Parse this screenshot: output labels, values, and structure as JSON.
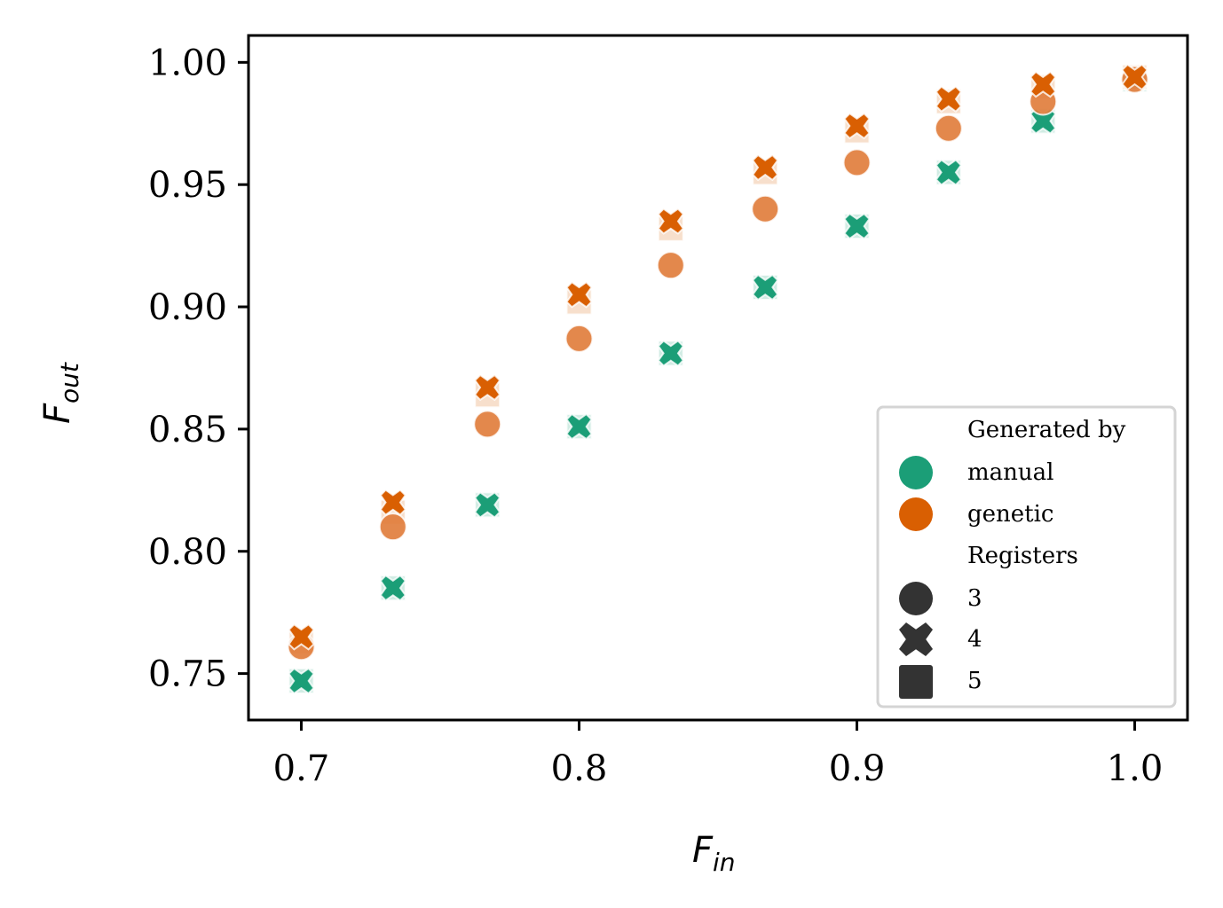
{
  "chart_data": {
    "type": "scatter",
    "title": "",
    "xlabel": {
      "main": "F",
      "sub": "in"
    },
    "ylabel": {
      "main": "F",
      "sub": "out"
    },
    "xlim": [
      0.681,
      1.019
    ],
    "ylim": [
      0.731,
      1.011
    ],
    "xticks": [
      0.7,
      0.8,
      0.9,
      1.0
    ],
    "xtick_labels": [
      "0.7",
      "0.8",
      "0.9",
      "1.0"
    ],
    "yticks": [
      0.75,
      0.8,
      0.85,
      0.9,
      0.95,
      1.0
    ],
    "ytick_labels": [
      "0.75",
      "0.80",
      "0.85",
      "0.90",
      "0.95",
      "1.00"
    ],
    "grid": false,
    "legend": {
      "placement": "lower-right",
      "hue_title": "Generated by",
      "hue_entries": [
        {
          "label": "manual",
          "color": "#1b9e77"
        },
        {
          "label": "genetic",
          "color": "#d95f02"
        }
      ],
      "style_title": "Registers",
      "style_entries": [
        {
          "label": "3",
          "marker": "circle"
        },
        {
          "label": "4",
          "marker": "x"
        },
        {
          "label": "5",
          "marker": "square"
        }
      ]
    },
    "x": [
      0.7,
      0.733,
      0.767,
      0.8,
      0.833,
      0.867,
      0.9,
      0.933,
      0.967,
      1.0
    ],
    "series": [
      {
        "name": "manual",
        "registers": "5",
        "marker": "square",
        "color": "#1b9e77",
        "values": [
          0.747,
          0.785,
          0.819,
          0.851,
          0.881,
          0.908,
          0.933,
          0.955,
          0.976,
          0.993
        ]
      },
      {
        "name": "manual",
        "registers": "4",
        "marker": "x",
        "color": "#1b9e77",
        "values": [
          0.747,
          0.785,
          0.819,
          0.851,
          0.881,
          0.908,
          0.933,
          0.955,
          0.976,
          0.993
        ]
      },
      {
        "name": "genetic",
        "registers": "5",
        "marker": "square",
        "color": "#d95f02",
        "values": [
          0.763,
          0.816,
          0.864,
          0.902,
          0.932,
          0.955,
          0.972,
          0.984,
          0.99,
          0.994
        ]
      },
      {
        "name": "genetic",
        "registers": "3",
        "marker": "circle",
        "color": "#e07b39",
        "values": [
          0.761,
          0.81,
          0.852,
          0.887,
          0.917,
          0.94,
          0.959,
          0.973,
          0.984,
          0.993
        ]
      },
      {
        "name": "genetic",
        "registers": "4",
        "marker": "x",
        "color": "#d95f02",
        "values": [
          0.765,
          0.82,
          0.867,
          0.905,
          0.935,
          0.957,
          0.974,
          0.985,
          0.991,
          0.994
        ]
      }
    ]
  }
}
